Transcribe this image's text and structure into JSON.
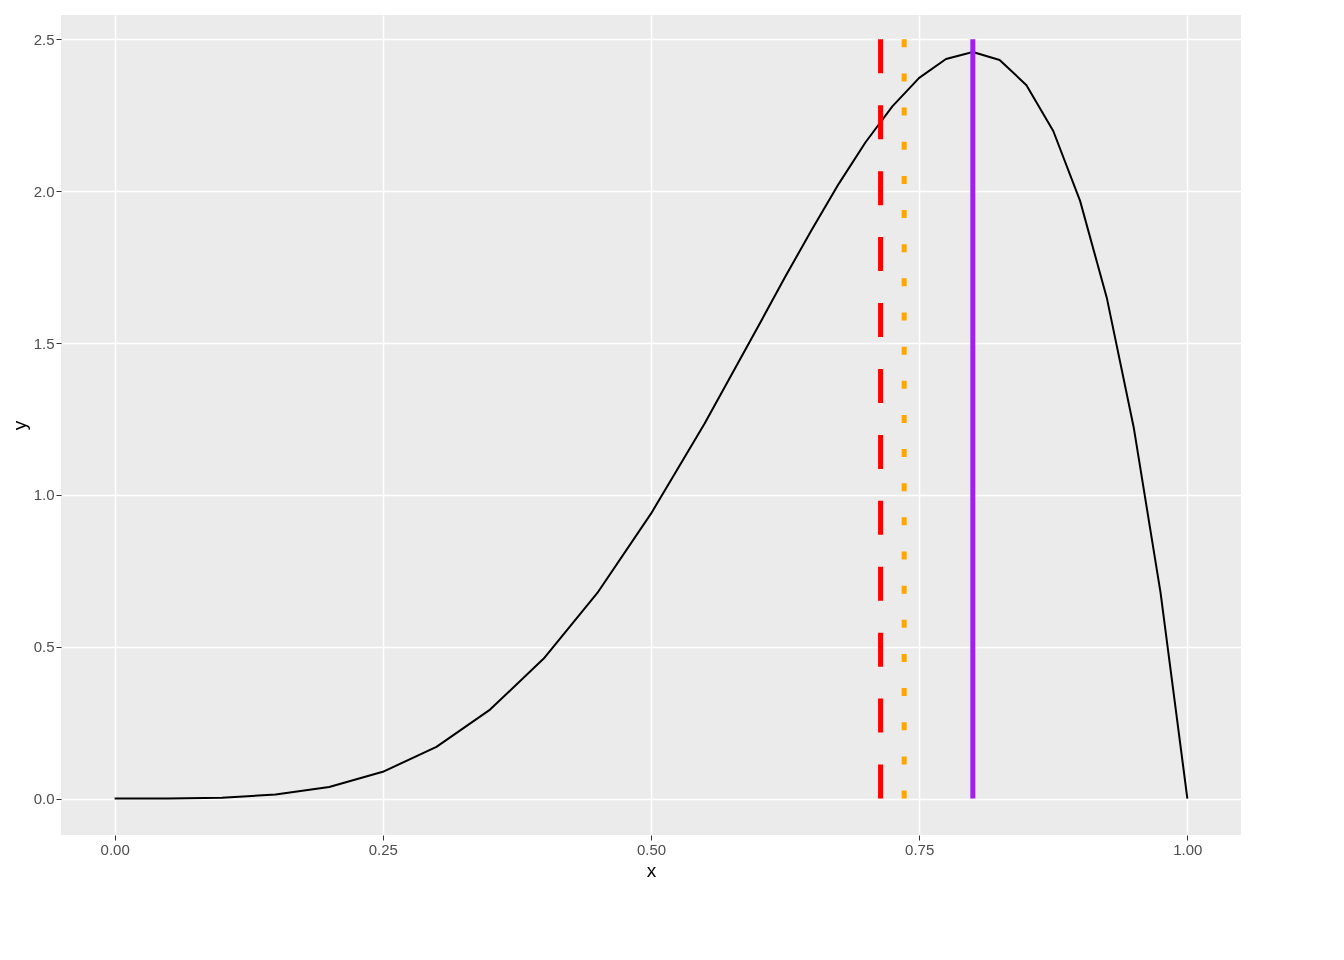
{
  "chart_data": {
    "type": "line",
    "xlabel": "x",
    "ylabel": "y",
    "xlim": [
      -0.05,
      1.05
    ],
    "ylim": [
      -0.12,
      2.58
    ],
    "xticks": [
      {
        "value": 0,
        "label": "0.00"
      },
      {
        "value": 0.25,
        "label": "0.25"
      },
      {
        "value": 0.5,
        "label": "0.50"
      },
      {
        "value": 0.75,
        "label": "0.75"
      },
      {
        "value": 1,
        "label": "1.00"
      }
    ],
    "yticks": [
      {
        "value": 0,
        "label": "0.0"
      },
      {
        "value": 0.5,
        "label": "0.5"
      },
      {
        "value": 1,
        "label": "1.0"
      },
      {
        "value": 1.5,
        "label": "1.5"
      },
      {
        "value": 2,
        "label": "2.0"
      },
      {
        "value": 2.5,
        "label": "2.5"
      }
    ],
    "grid": true,
    "series": [
      {
        "color": "#000000",
        "line_style": "solid",
        "x": [
          0,
          0.05,
          0.1,
          0.15,
          0.2,
          0.25,
          0.3,
          0.35,
          0.4,
          0.45,
          0.5,
          0.55,
          0.6,
          0.625,
          0.65,
          0.675,
          0.7,
          0.725,
          0.75,
          0.775,
          0.8,
          0.825,
          0.85,
          0.875,
          0.9,
          0.925,
          0.95,
          0.975,
          1
        ],
        "values": [
          0,
          0,
          0.003,
          0.013,
          0.038,
          0.088,
          0.17,
          0.293,
          0.461,
          0.677,
          0.938,
          1.235,
          1.555,
          1.717,
          1.874,
          2.024,
          2.161,
          2.279,
          2.373,
          2.435,
          2.458,
          2.432,
          2.349,
          2.198,
          1.968,
          1.647,
          1.222,
          0.678,
          0
        ]
      },
      {
        "color": "#ff0000",
        "line_style": "dashed",
        "x": [
          0.714,
          0.714
        ],
        "values": [
          0,
          2.5
        ]
      },
      {
        "color": "#ffa500",
        "line_style": "dotted",
        "x": [
          0.736,
          0.736
        ],
        "values": [
          0,
          2.5
        ]
      },
      {
        "color": "#a020f0",
        "line_style": "solid",
        "x": [
          0.8,
          0.8
        ],
        "values": [
          0,
          2.5
        ]
      }
    ]
  }
}
